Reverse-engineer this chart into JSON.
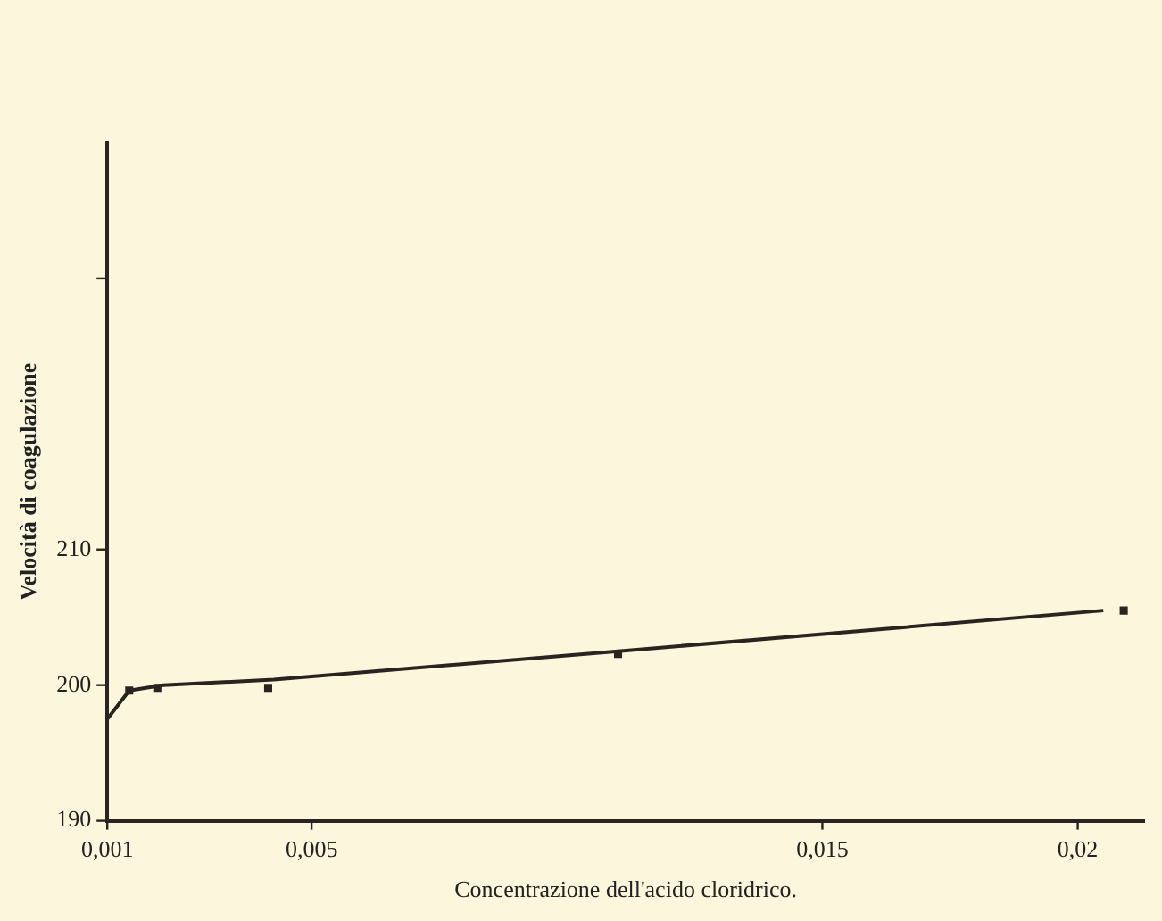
{
  "chart_data": {
    "type": "scatter",
    "xlabel": "Concentrazione dell'acido cloridrico.",
    "ylabel": "Velocità di coagulazione",
    "xlim": [
      0.001,
      0.0213
    ],
    "xticks": [
      {
        "value": 0.001,
        "label": "0,001"
      },
      {
        "value": 0.005,
        "label": "0,005"
      },
      {
        "value": 0.015,
        "label": "0,015"
      },
      {
        "value": 0.02,
        "label": "0,02"
      }
    ],
    "ylim": [
      190,
      240
    ],
    "yticks": [
      190,
      200,
      210,
      {
        "value": 230,
        "label": null
      }
    ],
    "grid": false,
    "legend": false,
    "series": [
      {
        "color": "#2a2420",
        "marker": "square",
        "x": [
          0.00143,
          0.00198,
          0.00415,
          0.011,
          0.0209
        ],
        "values": [
          199.6,
          199.8,
          199.8,
          202.3,
          205.5
        ]
      },
      {
        "type": "line",
        "color": "#2a2420",
        "marker": "none",
        "line_style": "solid",
        "x": [
          0.001,
          0.00143,
          0.00209,
          0.00426,
          0.011,
          0.0205
        ],
        "values": [
          197.5,
          199.6,
          200,
          200.4,
          202.5,
          205.5
        ]
      }
    ]
  }
}
